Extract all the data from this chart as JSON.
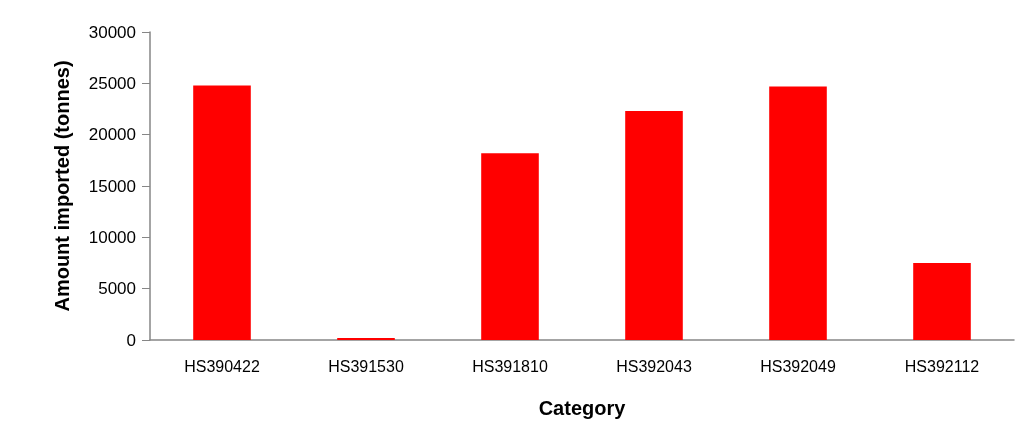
{
  "chart_data": {
    "type": "bar",
    "xlabel": "Category",
    "ylabel": "Amount imported (tonnes)",
    "categories": [
      "HS390422",
      "HS391530",
      "HS391810",
      "HS392043",
      "HS392049",
      "HS392112"
    ],
    "values": [
      24800,
      200,
      18200,
      22300,
      24700,
      7500
    ],
    "color": "#ff0000",
    "ylim": [
      0,
      30000
    ],
    "yticks": [
      0,
      5000,
      10000,
      15000,
      20000,
      25000,
      30000
    ],
    "grid": false
  }
}
